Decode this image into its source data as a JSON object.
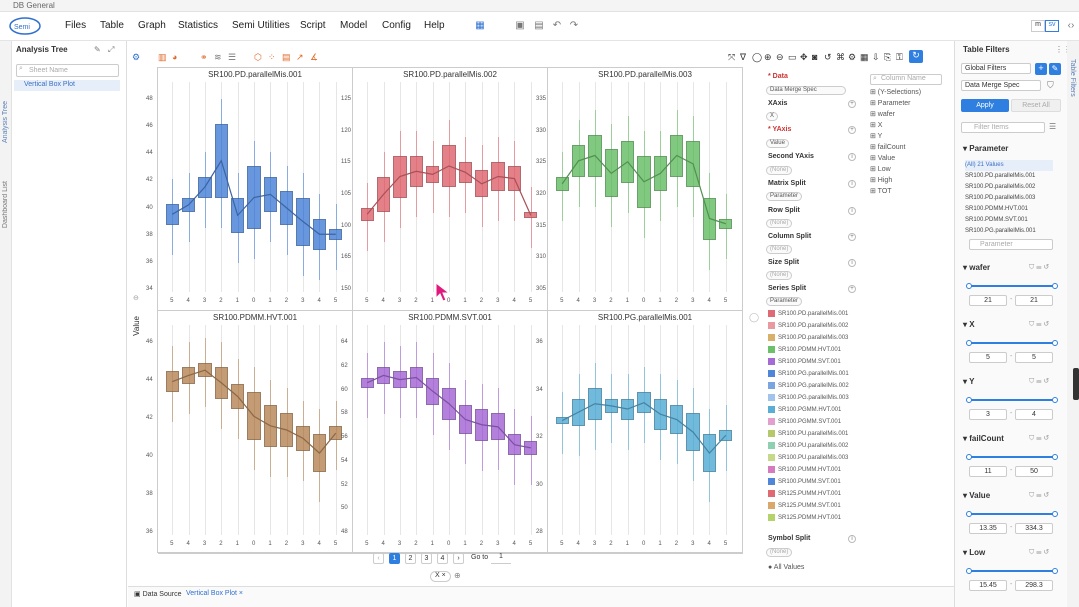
{
  "app": {
    "window_title": "DB General"
  },
  "menu": [
    "Files",
    "Table",
    "Graph",
    "Statistics",
    "Semi Utilities",
    "Script",
    "Model",
    "Config",
    "Help"
  ],
  "analysis_tree": {
    "title": "Analysis Tree",
    "search_placeholder": "Sheet Name",
    "item": "Vertical Box Plot",
    "tab_left": "Analysis Tree",
    "tab_left2": "Dashboard List"
  },
  "y_axis_label": "Value",
  "plots": [
    {
      "title": "SR100.PD.parallelMis.001",
      "color": "#4f86d9",
      "yticks": [
        "48",
        "46",
        "44",
        "42",
        "40",
        "38",
        "36",
        "34"
      ],
      "xticks": [
        "5",
        "4",
        "3",
        "2",
        "1",
        "0",
        "1",
        "2",
        "3",
        "4",
        "5"
      ]
    },
    {
      "title": "SR100.PD.parallelMis.002",
      "color": "#e06a74",
      "yticks": [
        "125",
        "120",
        "115",
        "105",
        "100",
        "165",
        "150"
      ],
      "xticks": [
        "5",
        "4",
        "3",
        "2",
        "1",
        "0",
        "1",
        "2",
        "3",
        "4",
        "5"
      ]
    },
    {
      "title": "SR100.PD.parallelMis.003",
      "color": "#6cc06a",
      "yticks": [
        "335",
        "330",
        "325",
        "320",
        "315",
        "310",
        "305"
      ],
      "xticks": [
        "5",
        "4",
        "3",
        "2",
        "1",
        "0",
        "1",
        "2",
        "3",
        "4",
        "5"
      ]
    },
    {
      "title": "SR100.PDMM.HVT.001",
      "color": "#b98a5e",
      "yticks": [
        "46",
        "44",
        "42",
        "40",
        "38",
        "36"
      ],
      "xticks": [
        "5",
        "4",
        "3",
        "2",
        "1",
        "0",
        "1",
        "2",
        "3",
        "4",
        "5"
      ]
    },
    {
      "title": "SR100.PDMM.SVT.001",
      "color": "#a66ad6",
      "yticks": [
        "64",
        "62",
        "60",
        "58",
        "56",
        "54",
        "52",
        "50",
        "48"
      ],
      "xticks": [
        "5",
        "4",
        "3",
        "2",
        "1",
        "0",
        "1",
        "2",
        "3",
        "4",
        "5"
      ]
    },
    {
      "title": "SR100.PG.parallelMis.001",
      "color": "#5aaed6",
      "yticks": [
        "36",
        "34",
        "32",
        "30",
        "28"
      ],
      "xticks": [
        "5",
        "4",
        "3",
        "2",
        "1",
        "0",
        "1",
        "2",
        "3",
        "4",
        "5"
      ]
    }
  ],
  "config": {
    "data_label": "Data",
    "data_value": "Data Merge Spec",
    "xaxis_label": "XAxis",
    "xaxis_value": "X",
    "yaxis_label": "YAxis",
    "yaxis_value": "Value",
    "second_yaxis_label": "Second YAxis",
    "second_yaxis_value": "(None)",
    "matrix_label": "Matrix Split",
    "matrix_value": "Parameter",
    "row_label": "Row Split",
    "row_value": "(None)",
    "column_label": "Column Split",
    "column_value": "(None)",
    "size_label": "Size Split",
    "size_value": "(None)",
    "series_label": "Series Split",
    "series_value": "Parameter",
    "symbol_label": "Symbol Split",
    "symbol_value": "(None)",
    "all_values": "All Values"
  },
  "legend": [
    {
      "name": "SR100.PD.parallelMis.001",
      "color": "#e06a74"
    },
    {
      "name": "SR100.PD.parallelMis.002",
      "color": "#e89aa0"
    },
    {
      "name": "SR100.PD.parallelMis.003",
      "color": "#d9b06a"
    },
    {
      "name": "SR100.PDMM.HVT.001",
      "color": "#6cc06a"
    },
    {
      "name": "SR100.PDMM.SVT.001",
      "color": "#a66ad6"
    },
    {
      "name": "SR100.PG.parallelMis.001",
      "color": "#4f86d9"
    },
    {
      "name": "SR100.PG.parallelMis.002",
      "color": "#7aa5e0"
    },
    {
      "name": "SR100.PG.parallelMis.003",
      "color": "#a0c4ec"
    },
    {
      "name": "SR100.PGMM.HVT.001",
      "color": "#5aaed6"
    },
    {
      "name": "SR100.PGMM.SVT.001",
      "color": "#e2a0cf"
    },
    {
      "name": "SR100.PU.parallelMis.001",
      "color": "#b5c96a"
    },
    {
      "name": "SR100.PU.parallelMis.002",
      "color": "#8fd0b0"
    },
    {
      "name": "SR100.PU.parallelMis.003",
      "color": "#c6d88a"
    },
    {
      "name": "SR100.PUMM.HVT.001",
      "color": "#d67bbe"
    },
    {
      "name": "SR100.PUMM.SVT.001",
      "color": "#4f86d9"
    },
    {
      "name": "SR125.PUMM.HVT.001",
      "color": "#e06a74"
    },
    {
      "name": "SR125.PUMM.SVT.001",
      "color": "#d9a86a"
    },
    {
      "name": "SR125.PDMM.HVT.001",
      "color": "#b5d36a"
    }
  ],
  "column_names": {
    "search_placeholder": "Column Name",
    "items": [
      "(Y-Selections)",
      "Parameter",
      "wafer",
      "X",
      "Y",
      "failCount",
      "Value",
      "Low",
      "High",
      "TOT"
    ]
  },
  "table_filters": {
    "title": "Table Filters",
    "global": "Global Filters",
    "spec": "Data Merge Spec",
    "apply": "Apply",
    "reset": "Reset All",
    "filter_placeholder": "Filter Items",
    "parameter": {
      "label": "Parameter",
      "items": [
        "(All) 21 Values",
        "SR100.PD.parallelMis.001",
        "SR100.PD.parallelMis.002",
        "SR100.PD.parallelMis.003",
        "SR100.PDMM.HVT.001",
        "SR100.PDMM.SVT.001",
        "SR100.PG.parallelMis.001"
      ],
      "search": "Parameter"
    },
    "wafer": {
      "label": "wafer",
      "min": "21",
      "max": "21"
    },
    "x": {
      "label": "X",
      "min": "5",
      "max": "5"
    },
    "y": {
      "label": "Y",
      "min": "3",
      "max": "4"
    },
    "failcount": {
      "label": "failCount",
      "min": "11",
      "max": "50"
    },
    "value": {
      "label": "Value",
      "min": "13.35",
      "max": "334.3"
    },
    "low": {
      "label": "Low",
      "min": "15.45",
      "max": "298.3"
    }
  },
  "pager": {
    "pages": [
      "1",
      "2",
      "3",
      "4"
    ],
    "goto": "Go to",
    "goto_value": "1",
    "x_chip": "X"
  },
  "bottom_tabs": {
    "data_source": "Data Source",
    "vbox": "Vertical Box Plot"
  },
  "right_tab": "Table Filters",
  "toggle": {
    "a": "m",
    "b": "sv"
  }
}
